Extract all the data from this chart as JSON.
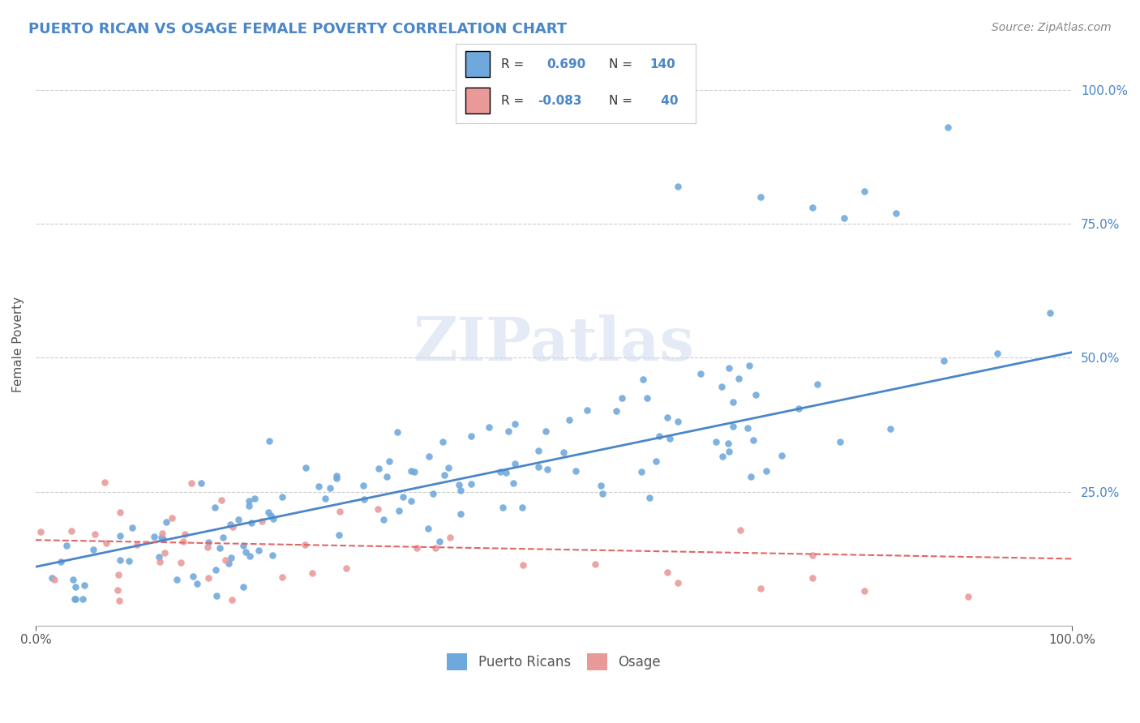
{
  "title": "PUERTO RICAN VS OSAGE FEMALE POVERTY CORRELATION CHART",
  "source": "Source: ZipAtlas.com",
  "ylabel": "Female Poverty",
  "xlim": [
    0.0,
    1.0
  ],
  "ylim": [
    0.0,
    1.05
  ],
  "ytick_labels": [
    "25.0%",
    "50.0%",
    "75.0%",
    "100.0%"
  ],
  "ytick_positions": [
    0.25,
    0.5,
    0.75,
    1.0
  ],
  "blue_R": 0.69,
  "blue_N": 140,
  "pink_R": -0.083,
  "pink_N": 40,
  "blue_color": "#6fa8dc",
  "pink_color": "#ea9999",
  "blue_line_color": "#4a86c8",
  "pink_line_color": "#e06666",
  "title_color": "#4a86c8",
  "source_color": "#888888",
  "watermark": "ZIPatlas",
  "background_color": "#ffffff",
  "grid_color": "#cccccc",
  "blue_line_y_start": 0.11,
  "blue_line_y_end": 0.51,
  "pink_line_y_start": 0.16,
  "pink_line_y_end": 0.125
}
